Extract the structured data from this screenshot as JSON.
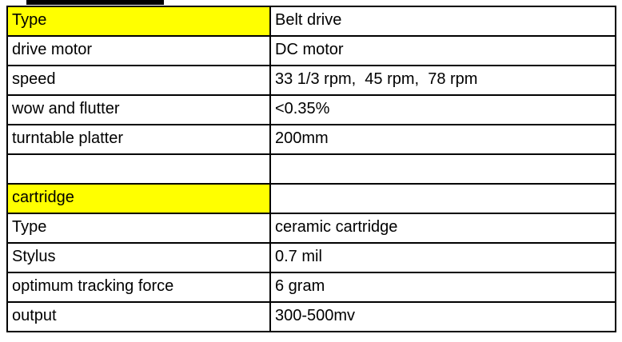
{
  "page": {
    "background_color": "#ffffff",
    "artifact_bar_color": "#000000"
  },
  "table": {
    "border_color": "#000000",
    "highlight_color": "#ffff00",
    "rows": [
      {
        "label": "Type",
        "value": "Belt drive",
        "label_highlight": true
      },
      {
        "label": "drive motor",
        "value": "DC motor",
        "label_highlight": false
      },
      {
        "label": "speed",
        "value": "33 1/3 rpm,  45 rpm,  78 rpm",
        "label_highlight": false
      },
      {
        "label": "wow and flutter",
        "value": "<0.35%",
        "label_highlight": false
      },
      {
        "label": "turntable platter",
        "value": "200mm",
        "label_highlight": false
      },
      {
        "label": "",
        "value": "",
        "label_highlight": false
      },
      {
        "label": "cartridge",
        "value": "",
        "label_highlight": true
      },
      {
        "label": "Type",
        "value": "ceramic cartridge",
        "label_highlight": false
      },
      {
        "label": "Stylus",
        "value": "0.7 mil",
        "label_highlight": false
      },
      {
        "label": "optimum tracking force",
        "value": "6 gram",
        "label_highlight": false
      },
      {
        "label": "output",
        "value": "300-500mv",
        "label_highlight": false
      }
    ]
  }
}
